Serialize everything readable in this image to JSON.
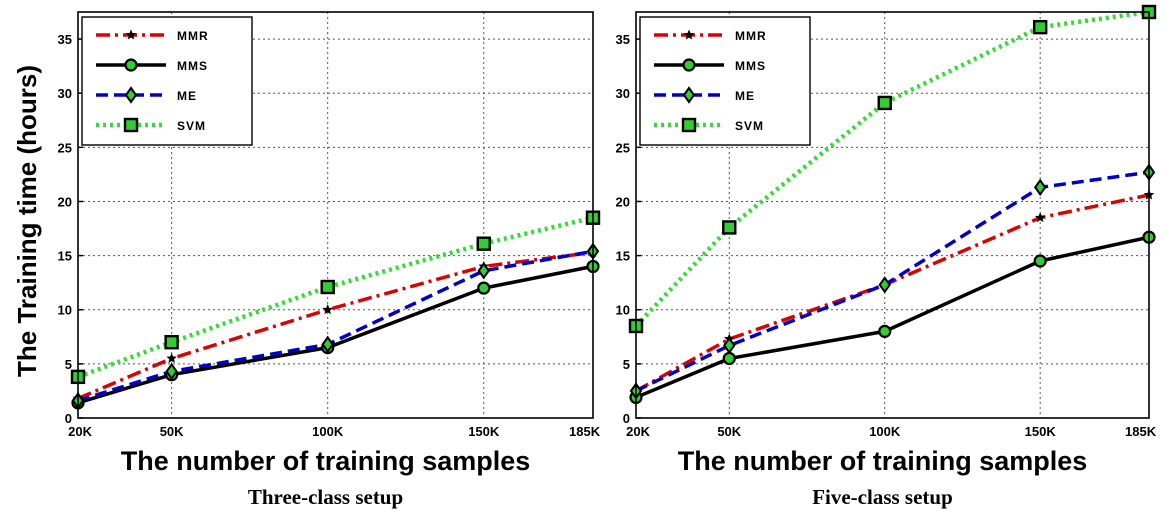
{
  "ylabel": "The Training time (hours)",
  "chart_data": [
    {
      "type": "line",
      "caption": "Three-class setup",
      "xlabel": "The number of training samples",
      "ylabel": "The Training time (hours)",
      "x": [
        20,
        50,
        100,
        150,
        185
      ],
      "x_tick_labels": [
        "20K",
        "50K",
        "100K",
        "150K",
        "185K"
      ],
      "xlim": [
        20,
        185
      ],
      "ylim": [
        0,
        37.5
      ],
      "y_ticks": [
        0,
        5,
        10,
        15,
        20,
        25,
        30,
        35
      ],
      "grid": true,
      "legend_position": "top-left",
      "series": [
        {
          "name": "MMR",
          "color": "#dd0000",
          "marker": "star",
          "values": [
            1.8,
            5.5,
            10.0,
            14.0,
            15.3
          ]
        },
        {
          "name": "MMS",
          "color": "#000000",
          "marker": "circle",
          "values": [
            1.4,
            4.0,
            6.5,
            12.0,
            14.0
          ]
        },
        {
          "name": "ME",
          "color": "#0000cc",
          "marker": "diamond",
          "values": [
            1.6,
            4.3,
            6.8,
            13.6,
            15.4
          ]
        },
        {
          "name": "SVM",
          "color": "#33dd33",
          "marker": "square",
          "values": [
            3.8,
            7.0,
            12.1,
            16.1,
            18.5
          ]
        }
      ]
    },
    {
      "type": "line",
      "caption": "Five-class setup",
      "xlabel": "The number of training samples",
      "ylabel": "",
      "x": [
        20,
        50,
        100,
        150,
        185
      ],
      "x_tick_labels": [
        "20K",
        "50K",
        "100K",
        "150K",
        "185K"
      ],
      "xlim": [
        20,
        185
      ],
      "ylim": [
        0,
        37.5
      ],
      "y_ticks": [
        0,
        5,
        10,
        15,
        20,
        25,
        30,
        35
      ],
      "grid": true,
      "legend_position": "top-left",
      "series": [
        {
          "name": "MMR",
          "color": "#dd0000",
          "marker": "star",
          "values": [
            2.5,
            7.3,
            12.3,
            18.5,
            20.6
          ]
        },
        {
          "name": "MMS",
          "color": "#000000",
          "marker": "circle",
          "values": [
            1.9,
            5.5,
            8.0,
            14.5,
            16.7
          ]
        },
        {
          "name": "ME",
          "color": "#0000cc",
          "marker": "diamond",
          "values": [
            2.5,
            6.7,
            12.3,
            21.3,
            22.7
          ]
        },
        {
          "name": "SVM",
          "color": "#33dd33",
          "marker": "square",
          "values": [
            8.5,
            17.6,
            29.1,
            36.1,
            37.5
          ]
        }
      ]
    }
  ]
}
